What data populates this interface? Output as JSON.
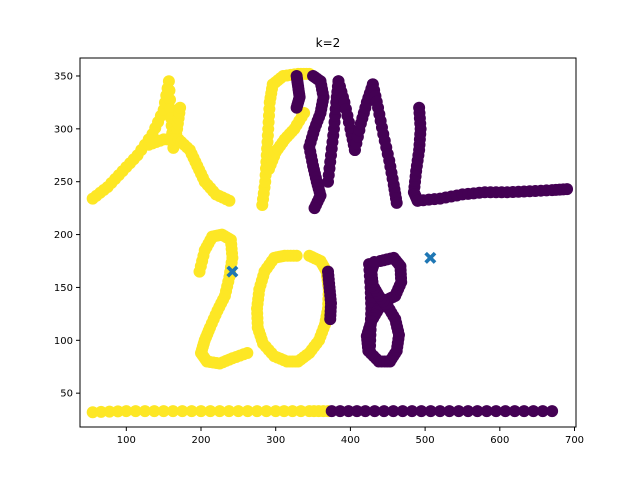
{
  "chart_data": {
    "type": "scatter",
    "title": "k=2",
    "xlabel": "",
    "ylabel": "",
    "xlim": [
      38,
      702
    ],
    "ylim": [
      18,
      367
    ],
    "xticks": [
      100,
      200,
      300,
      400,
      500,
      600,
      700
    ],
    "yticks": [
      50,
      100,
      150,
      200,
      250,
      300,
      350
    ],
    "grid": false,
    "colors": {
      "cluster_0": "#440154",
      "cluster_1": "#fde725",
      "centroid": "#1f77b4"
    },
    "centroids": [
      {
        "x": 242,
        "y": 165
      },
      {
        "x": 507,
        "y": 178
      }
    ],
    "strokes": [
      {
        "cluster": 1,
        "points": [
          [
            55,
            234
          ],
          [
            75,
            245
          ],
          [
            95,
            260
          ],
          [
            115,
            275
          ],
          [
            135,
            295
          ],
          [
            150,
            318
          ],
          [
            157,
            345
          ],
          [
            160,
            310
          ],
          [
            163,
            282
          ],
          [
            168,
            300
          ],
          [
            172,
            320
          ]
        ]
      },
      {
        "cluster": 1,
        "points": [
          [
            130,
            285
          ],
          [
            150,
            290
          ],
          [
            170,
            290
          ],
          [
            185,
            280
          ],
          [
            195,
            265
          ],
          [
            205,
            250
          ],
          [
            220,
            238
          ],
          [
            238,
            232
          ]
        ]
      },
      {
        "cluster": 1,
        "points": [
          [
            282,
            228
          ],
          [
            286,
            250
          ],
          [
            288,
            275
          ],
          [
            290,
            300
          ],
          [
            292,
            325
          ],
          [
            296,
            342
          ],
          [
            310,
            350
          ],
          [
            330,
            352
          ],
          [
            345,
            352
          ]
        ]
      },
      {
        "cluster": 1,
        "points": [
          [
            291,
            262
          ],
          [
            300,
            278
          ],
          [
            312,
            290
          ],
          [
            325,
            300
          ],
          [
            338,
            315
          ]
        ]
      },
      {
        "cluster": 0,
        "points": [
          [
            350,
            350
          ],
          [
            360,
            345
          ],
          [
            364,
            330
          ],
          [
            360,
            315
          ],
          [
            352,
            300
          ],
          [
            345,
            283
          ],
          [
            350,
            265
          ],
          [
            355,
            250
          ],
          [
            360,
            237
          ],
          [
            352,
            225
          ]
        ]
      },
      {
        "cluster": 0,
        "points": [
          [
            328,
            350
          ],
          [
            330,
            340
          ],
          [
            332,
            330
          ],
          [
            328,
            320
          ]
        ]
      },
      {
        "cluster": 0,
        "points": [
          [
            370,
            250
          ],
          [
            374,
            275
          ],
          [
            378,
            300
          ],
          [
            381,
            325
          ],
          [
            384,
            345
          ]
        ]
      },
      {
        "cluster": 0,
        "points": [
          [
            384,
            345
          ],
          [
            392,
            325
          ],
          [
            400,
            300
          ],
          [
            406,
            280
          ]
        ]
      },
      {
        "cluster": 0,
        "points": [
          [
            406,
            280
          ],
          [
            414,
            305
          ],
          [
            422,
            325
          ],
          [
            430,
            342
          ]
        ]
      },
      {
        "cluster": 0,
        "points": [
          [
            430,
            342
          ],
          [
            437,
            320
          ],
          [
            444,
            295
          ],
          [
            452,
            270
          ],
          [
            458,
            247
          ],
          [
            462,
            230
          ]
        ]
      },
      {
        "cluster": 0,
        "points": [
          [
            492,
            320
          ],
          [
            494,
            300
          ],
          [
            492,
            280
          ],
          [
            488,
            260
          ],
          [
            485,
            240
          ],
          [
            490,
            232
          ]
        ]
      },
      {
        "cluster": 0,
        "points": [
          [
            490,
            232
          ],
          [
            520,
            234
          ],
          [
            550,
            238
          ],
          [
            580,
            240
          ],
          [
            610,
            240
          ],
          [
            640,
            241
          ],
          [
            670,
            242
          ],
          [
            690,
            243
          ]
        ]
      },
      {
        "cluster": 1,
        "points": [
          [
            198,
            165
          ],
          [
            205,
            185
          ],
          [
            215,
            198
          ],
          [
            228,
            200
          ],
          [
            240,
            195
          ],
          [
            242,
            178
          ],
          [
            238,
            160
          ],
          [
            232,
            142
          ],
          [
            222,
            128
          ],
          [
            212,
            112
          ],
          [
            205,
            100
          ],
          [
            200,
            88
          ],
          [
            208,
            80
          ],
          [
            225,
            78
          ],
          [
            242,
            83
          ],
          [
            262,
            88
          ]
        ]
      },
      {
        "cluster": 1,
        "points": [
          [
            328,
            180
          ],
          [
            312,
            180
          ],
          [
            298,
            178
          ],
          [
            285,
            165
          ],
          [
            278,
            148
          ],
          [
            275,
            130
          ],
          [
            276,
            112
          ],
          [
            283,
            97
          ],
          [
            298,
            85
          ],
          [
            315,
            80
          ],
          [
            330,
            80
          ],
          [
            345,
            88
          ],
          [
            358,
            100
          ],
          [
            366,
            115
          ],
          [
            370,
            130
          ],
          [
            371,
            148
          ],
          [
            368,
            165
          ],
          [
            360,
            175
          ],
          [
            345,
            180
          ]
        ]
      },
      {
        "cluster": 0,
        "points": [
          [
            370,
            165
          ],
          [
            372,
            150
          ],
          [
            374,
            135
          ],
          [
            373,
            120
          ]
        ]
      },
      {
        "cluster": 0,
        "points": [
          [
            425,
            172
          ],
          [
            427,
            150
          ],
          [
            428,
            130
          ],
          [
            427,
            110
          ],
          [
            426,
            90
          ]
        ]
      },
      {
        "cluster": 0,
        "points": [
          [
            440,
            175
          ],
          [
            458,
            178
          ],
          [
            467,
            170
          ],
          [
            468,
            155
          ],
          [
            460,
            142
          ],
          [
            448,
            138
          ],
          [
            438,
            130
          ],
          [
            428,
            118
          ],
          [
            422,
            104
          ],
          [
            424,
            90
          ],
          [
            438,
            80
          ],
          [
            453,
            80
          ],
          [
            462,
            90
          ],
          [
            465,
            105
          ],
          [
            460,
            120
          ],
          [
            450,
            132
          ],
          [
            438,
            142
          ],
          [
            430,
            152
          ],
          [
            428,
            165
          ],
          [
            432,
            174
          ]
        ]
      },
      {
        "cluster": 1,
        "points": [
          [
            55,
            32
          ],
          [
            100,
            33
          ],
          [
            150,
            33
          ],
          [
            200,
            33
          ],
          [
            250,
            33
          ],
          [
            300,
            33
          ],
          [
            345,
            33
          ],
          [
            370,
            33
          ]
        ]
      },
      {
        "cluster": 0,
        "points": [
          [
            375,
            33
          ],
          [
            420,
            33
          ],
          [
            470,
            33
          ],
          [
            520,
            33
          ],
          [
            570,
            33
          ],
          [
            620,
            33
          ],
          [
            670,
            33
          ]
        ]
      }
    ]
  }
}
